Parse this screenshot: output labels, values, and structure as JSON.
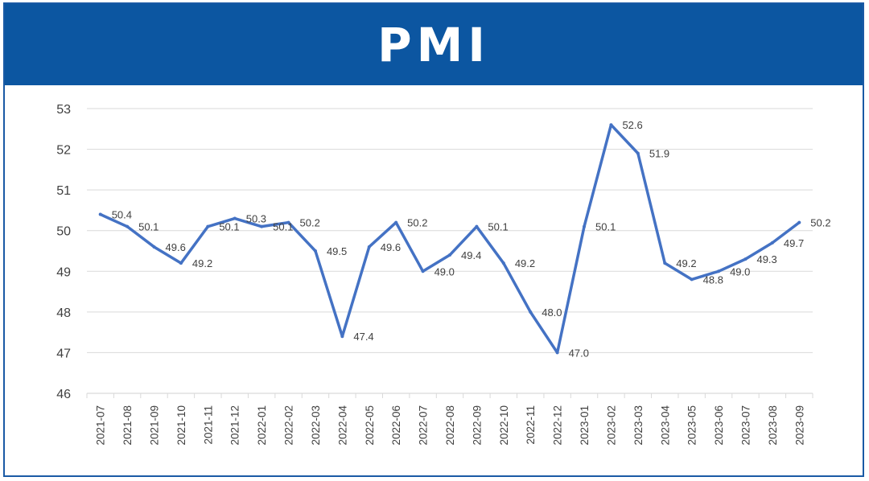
{
  "colors": {
    "header_bg": "#0c56a1",
    "frame_border": "#1a5aa5",
    "line": "#4472c4",
    "grid": "#d9d9d9",
    "text": "#404040"
  },
  "chart_data": {
    "type": "line",
    "title": "PMI",
    "xlabel": "",
    "ylabel": "",
    "ylim": [
      46,
      53
    ],
    "yticks": [
      46,
      47,
      48,
      49,
      50,
      51,
      52,
      53
    ],
    "grid": true,
    "legend": "none",
    "categories": [
      "2021-07",
      "2021-08",
      "2021-09",
      "2021-10",
      "2021-11",
      "2021-12",
      "2022-01",
      "2022-02",
      "2022-03",
      "2022-04",
      "2022-05",
      "2022-06",
      "2022-07",
      "2022-08",
      "2022-09",
      "2022-10",
      "2022-11",
      "2022-12",
      "2023-01",
      "2023-02",
      "2023-03",
      "2023-04",
      "2023-05",
      "2023-06",
      "2023-07",
      "2023-08",
      "2023-09"
    ],
    "series": [
      {
        "values": [
          50.4,
          50.1,
          49.6,
          49.2,
          50.1,
          50.3,
          50.1,
          50.2,
          49.5,
          47.4,
          49.6,
          50.2,
          49.0,
          49.4,
          50.1,
          49.2,
          48.0,
          47.0,
          50.1,
          52.6,
          51.9,
          49.2,
          48.8,
          49.0,
          49.3,
          49.7,
          50.2
        ],
        "labels": [
          "50.4",
          "50.1",
          "49.6",
          "49.2",
          "50.1",
          "50.3",
          "50.1",
          "50.2",
          "49.5",
          "47.4",
          "49.6",
          "50.2",
          "49.0",
          "49.4",
          "50.1",
          "49.2",
          "48.0",
          "47.0",
          "50.1",
          "52.6",
          "51.9",
          "49.2",
          "48.8",
          "49.0",
          "49.3",
          "49.7",
          "50.2"
        ]
      }
    ]
  }
}
